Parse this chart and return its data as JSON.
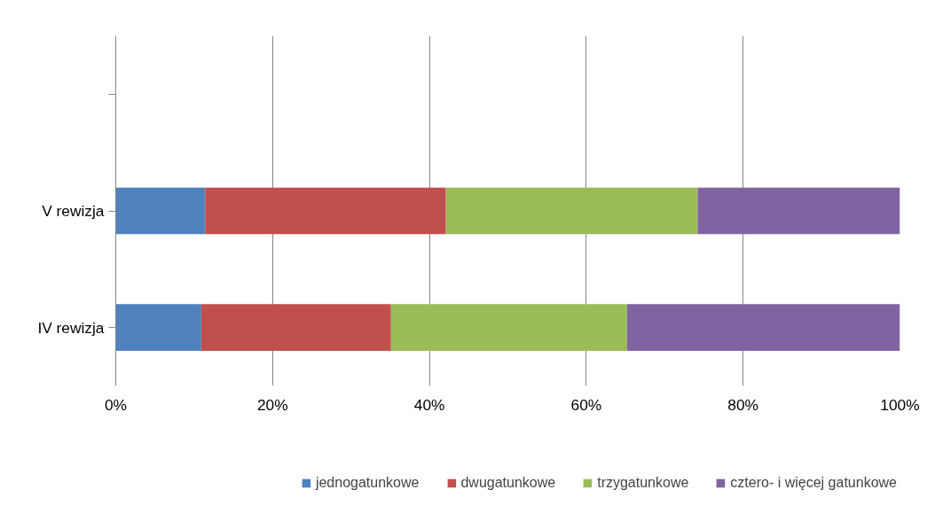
{
  "chart_data": {
    "type": "bar",
    "orientation": "horizontal",
    "stacked": true,
    "categories": [
      null,
      "V rewizja",
      "IV rewizja"
    ],
    "series": [
      {
        "name": "jednogatunkowe",
        "color": "#4f81bd",
        "values": [
          null,
          11.4,
          10.9
        ]
      },
      {
        "name": "dwugatunkowe",
        "color": "#c0504d",
        "values": [
          null,
          30.7,
          24.2
        ]
      },
      {
        "name": "trzygatunkowe",
        "color": "#9bbb59",
        "values": [
          null,
          32.1,
          30.1
        ]
      },
      {
        "name": "cztero- i więcej gatunkowe",
        "color": "#8064a2",
        "values": [
          null,
          25.8,
          34.8
        ]
      }
    ],
    "xlim": [
      0,
      100
    ],
    "xticks": [
      {
        "value": 0,
        "label": "0%"
      },
      {
        "value": 20,
        "label": "20%"
      },
      {
        "value": 40,
        "label": "40%"
      },
      {
        "value": 60,
        "label": "60%"
      },
      {
        "value": 80,
        "label": "80%"
      },
      {
        "value": 100,
        "label": "100%"
      }
    ],
    "grid": "x",
    "legend": "bottom"
  }
}
